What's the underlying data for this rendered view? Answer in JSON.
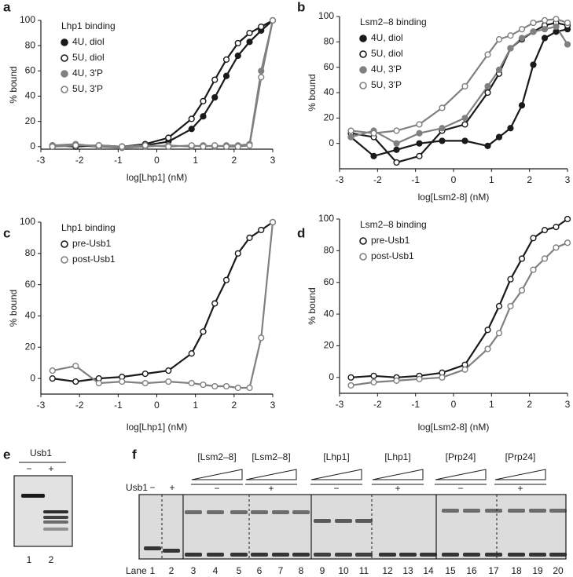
{
  "chart_data": [
    {
      "panel": "a",
      "type": "line",
      "legend_title": "Lhp1 binding",
      "ylabel": "% bound",
      "xlabel": "log[Lhp1] (nM)",
      "x": [
        -2.7,
        -2.1,
        -1.5,
        -0.9,
        -0.3,
        0.3,
        0.9,
        1.2,
        1.5,
        1.8,
        2.1,
        2.4,
        2.7,
        3.0
      ],
      "xlim": [
        -3,
        3
      ],
      "xticks": [
        -3,
        -2,
        -1,
        0,
        1,
        2,
        3
      ],
      "ylim": [
        -2,
        100
      ],
      "yticks": [
        0,
        20,
        40,
        60,
        80,
        100
      ],
      "legend": "upper left",
      "series": [
        {
          "name": "4U, diol",
          "color": "#1a1a1a",
          "marker": "filled",
          "values": [
            0,
            1,
            0,
            0,
            1,
            4,
            14,
            24,
            39,
            56,
            72,
            83,
            92,
            100
          ]
        },
        {
          "name": "5U, diol",
          "color": "#1a1a1a",
          "marker": "open",
          "values": [
            1,
            0,
            1,
            0,
            2,
            7,
            22,
            36,
            53,
            69,
            82,
            90,
            95,
            100
          ]
        },
        {
          "name": "4U, 3'P",
          "color": "#808080",
          "marker": "filled",
          "values": [
            1,
            2,
            0,
            -1,
            0,
            1,
            0,
            1,
            0,
            1,
            1,
            2,
            60,
            100
          ]
        },
        {
          "name": "5U, 3'P",
          "color": "#808080",
          "marker": "open",
          "values": [
            0,
            1,
            1,
            0,
            1,
            0,
            1,
            0,
            1,
            0,
            0,
            1,
            55,
            100
          ]
        }
      ]
    },
    {
      "panel": "b",
      "type": "line",
      "legend_title": "Lsm2–8 binding",
      "ylabel": "% bound",
      "xlabel": "log[Lsm2-8] (nM)",
      "x": [
        -2.7,
        -2.1,
        -1.5,
        -0.9,
        -0.3,
        0.3,
        0.9,
        1.2,
        1.5,
        1.8,
        2.1,
        2.4,
        2.7,
        3.0
      ],
      "xlim": [
        -3,
        3
      ],
      "xticks": [
        -3,
        -2,
        -1,
        0,
        1,
        2,
        3
      ],
      "ylim": [
        -20,
        100
      ],
      "yticks": [
        0,
        20,
        40,
        60,
        80,
        100
      ],
      "legend": "upper left",
      "series": [
        {
          "name": "4U, diol",
          "color": "#1a1a1a",
          "marker": "filled",
          "values": [
            5,
            -10,
            -5,
            0,
            2,
            2,
            -2,
            5,
            12,
            30,
            62,
            83,
            88,
            90
          ]
        },
        {
          "name": "5U, diol",
          "color": "#1a1a1a",
          "marker": "open",
          "values": [
            8,
            5,
            -15,
            -10,
            10,
            15,
            40,
            55,
            75,
            82,
            88,
            93,
            95,
            93
          ]
        },
        {
          "name": "4U, 3'P",
          "color": "#808080",
          "marker": "filled",
          "values": [
            5,
            10,
            0,
            8,
            12,
            20,
            45,
            58,
            75,
            83,
            88,
            90,
            92,
            78
          ]
        },
        {
          "name": "5U, 3'P",
          "color": "#808080",
          "marker": "open",
          "values": [
            10,
            8,
            10,
            15,
            28,
            45,
            70,
            82,
            85,
            90,
            95,
            97,
            98,
            95
          ]
        }
      ]
    },
    {
      "panel": "c",
      "type": "line",
      "legend_title": "Lhp1 binding",
      "ylabel": "% bound",
      "xlabel": "log[Lhp1] (nM)",
      "x": [
        -2.7,
        -2.1,
        -1.5,
        -0.9,
        -0.3,
        0.3,
        0.9,
        1.2,
        1.5,
        1.8,
        2.1,
        2.4,
        2.7,
        3.0
      ],
      "xlim": [
        -3,
        3
      ],
      "xticks": [
        -3,
        -2,
        -1,
        0,
        1,
        2,
        3
      ],
      "ylim": [
        -10,
        100
      ],
      "yticks": [
        0,
        20,
        40,
        60,
        80,
        100
      ],
      "legend": "upper left",
      "series": [
        {
          "name": "pre-Usb1",
          "color": "#1a1a1a",
          "marker": "open",
          "values": [
            0,
            -2,
            0,
            1,
            3,
            5,
            16,
            30,
            48,
            63,
            80,
            90,
            95,
            100
          ]
        },
        {
          "name": "post-Usb1",
          "color": "#808080",
          "marker": "open",
          "values": [
            5,
            8,
            -3,
            -2,
            -3,
            -2,
            -3,
            -4,
            -5,
            -5,
            -6,
            -6,
            26,
            100
          ]
        }
      ]
    },
    {
      "panel": "d",
      "type": "line",
      "legend_title": "Lsm2–8 binding",
      "ylabel": "% bound",
      "xlabel": "log[Lsm2-8] (nM)",
      "x": [
        -2.7,
        -2.1,
        -1.5,
        -0.9,
        -0.3,
        0.3,
        0.9,
        1.2,
        1.5,
        1.8,
        2.1,
        2.4,
        2.7,
        3.0
      ],
      "xlim": [
        -3,
        3
      ],
      "xticks": [
        -3,
        -2,
        -1,
        0,
        1,
        2,
        3
      ],
      "ylim": [
        -10,
        100
      ],
      "yticks": [
        0,
        20,
        40,
        60,
        80,
        100
      ],
      "legend": "upper left",
      "series": [
        {
          "name": "pre-Usb1",
          "color": "#1a1a1a",
          "marker": "open",
          "values": [
            0,
            1,
            0,
            1,
            3,
            8,
            30,
            45,
            62,
            75,
            88,
            93,
            95,
            100
          ]
        },
        {
          "name": "post-Usb1",
          "color": "#808080",
          "marker": "open",
          "values": [
            -5,
            -3,
            -2,
            -1,
            0,
            5,
            18,
            28,
            45,
            55,
            68,
            75,
            82,
            85
          ]
        }
      ]
    }
  ],
  "gel_e": {
    "panel": "e",
    "title": "Usb1",
    "conditions": [
      "−",
      "+"
    ],
    "lanes": [
      "1",
      "2"
    ]
  },
  "gel_f": {
    "panel": "f",
    "usb1_label": "Usb1",
    "control_conditions": [
      "−",
      "+"
    ],
    "groups": [
      {
        "label": "[Lsm2–8]",
        "usb1": "−"
      },
      {
        "label": "[Lsm2–8]",
        "usb1": "+"
      },
      {
        "label": "[Lhp1]",
        "usb1": "−"
      },
      {
        "label": "[Lhp1]",
        "usb1": "+"
      },
      {
        "label": "[Prp24]",
        "usb1": "−"
      },
      {
        "label": "[Prp24]",
        "usb1": "+"
      }
    ],
    "lane_label": "Lane",
    "lanes": [
      "1",
      "2",
      "3",
      "4",
      "5",
      "6",
      "7",
      "8",
      "9",
      "10",
      "11",
      "12",
      "13",
      "14",
      "15",
      "16",
      "17",
      "18",
      "19",
      "20"
    ]
  }
}
